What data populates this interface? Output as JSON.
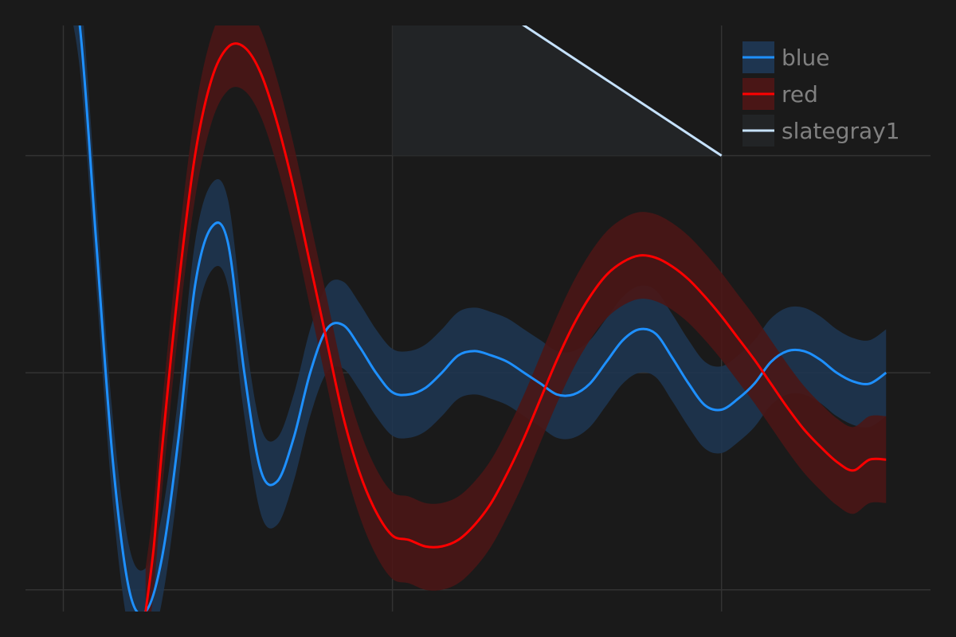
{
  "chart_data": {
    "type": "line",
    "title": "",
    "xlabel": "",
    "ylabel": "",
    "xlim": [
      -0.115,
      2.635
    ],
    "ylim": [
      -1.1,
      1.6
    ],
    "grid": true,
    "x_gridlines": [
      0,
      1,
      2
    ],
    "y_gridlines": [
      -1,
      0,
      1
    ],
    "legend": {
      "position": "top-right"
    },
    "background": "#1a1a1a",
    "grid_color": "#333333",
    "series": [
      {
        "name": "blue",
        "color": "#1e90ff",
        "band_color": "#1e3550",
        "band_halfwidth": 0.2,
        "x": [
          0.0,
          0.05,
          0.1,
          0.15,
          0.2,
          0.25,
          0.3,
          0.35,
          0.4,
          0.45,
          0.5,
          0.55,
          0.6,
          0.65,
          0.7,
          0.75,
          0.8,
          0.85,
          0.9,
          0.95,
          1.0,
          1.05,
          1.1,
          1.15,
          1.2,
          1.25,
          1.3,
          1.35,
          1.4,
          1.45,
          1.5,
          1.55,
          1.6,
          1.65,
          1.7,
          1.75,
          1.8,
          1.85,
          1.9,
          1.95,
          2.0,
          2.05,
          2.1,
          2.15,
          2.2,
          2.25,
          2.3,
          2.35,
          2.4,
          2.45,
          2.5
        ],
        "y": [
          2.0,
          1.6,
          0.6,
          -0.4,
          -1.0,
          -1.1,
          -0.85,
          -0.3,
          0.4,
          0.67,
          0.6,
          0.0,
          -0.45,
          -0.5,
          -0.3,
          0.0,
          0.2,
          0.22,
          0.12,
          0.0,
          -0.09,
          -0.1,
          -0.07,
          0.0,
          0.08,
          0.1,
          0.08,
          0.05,
          0.0,
          -0.05,
          -0.1,
          -0.1,
          -0.05,
          0.05,
          0.15,
          0.2,
          0.18,
          0.07,
          -0.05,
          -0.15,
          -0.17,
          -0.12,
          -0.05,
          0.05,
          0.1,
          0.1,
          0.06,
          0.0,
          -0.04,
          -0.05,
          0.0
        ]
      },
      {
        "name": "red",
        "color": "#ff0000",
        "band_color": "#4a1616",
        "band_halfwidth": 0.2,
        "x": [
          0.25,
          0.275,
          0.3,
          0.35,
          0.4,
          0.45,
          0.5,
          0.55,
          0.6,
          0.65,
          0.7,
          0.75,
          0.8,
          0.85,
          0.9,
          0.95,
          1.0,
          1.05,
          1.1,
          1.15,
          1.2,
          1.25,
          1.3,
          1.35,
          1.4,
          1.45,
          1.5,
          1.55,
          1.6,
          1.65,
          1.7,
          1.75,
          1.8,
          1.85,
          1.9,
          1.95,
          2.0,
          2.05,
          2.1,
          2.15,
          2.2,
          2.25,
          2.3,
          2.35,
          2.4,
          2.45,
          2.5
        ],
        "y": [
          -1.1,
          -0.8,
          -0.35,
          0.4,
          1.0,
          1.35,
          1.5,
          1.5,
          1.38,
          1.15,
          0.85,
          0.5,
          0.15,
          -0.2,
          -0.46,
          -0.64,
          -0.75,
          -0.77,
          -0.8,
          -0.8,
          -0.77,
          -0.7,
          -0.6,
          -0.46,
          -0.3,
          -0.12,
          0.06,
          0.22,
          0.35,
          0.45,
          0.51,
          0.54,
          0.53,
          0.49,
          0.43,
          0.35,
          0.26,
          0.16,
          0.06,
          -0.05,
          -0.16,
          -0.26,
          -0.34,
          -0.41,
          -0.45,
          -0.4,
          -0.4
        ]
      },
      {
        "name": "slategray1",
        "color": "#c6e2ff",
        "fill_color": "#222426",
        "fill_to": 1,
        "x": [
          1,
          2
        ],
        "y": [
          2,
          1
        ]
      }
    ]
  }
}
